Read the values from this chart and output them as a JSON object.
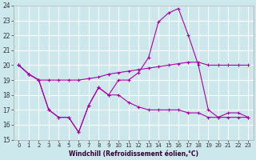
{
  "xlabel": "Windchill (Refroidissement éolien,°C)",
  "bg_color": "#cce8ec",
  "line_color": "#aa00aa",
  "grid_color": "#ffffff",
  "xlim": [
    -0.5,
    23.5
  ],
  "ylim": [
    15,
    24
  ],
  "yticks": [
    15,
    16,
    17,
    18,
    19,
    20,
    21,
    22,
    23,
    24
  ],
  "xticks": [
    0,
    1,
    2,
    3,
    4,
    5,
    6,
    7,
    8,
    9,
    10,
    11,
    12,
    13,
    14,
    15,
    16,
    17,
    18,
    19,
    20,
    21,
    22,
    23
  ],
  "series1_x": [
    0,
    1,
    2,
    3,
    4,
    5,
    6,
    7,
    8,
    9,
    10,
    11,
    12,
    13,
    14,
    15,
    16,
    17,
    18,
    19,
    20,
    21,
    22,
    23
  ],
  "series1_y": [
    20.0,
    19.4,
    19.0,
    19.0,
    19.0,
    19.0,
    19.0,
    19.1,
    19.2,
    19.4,
    19.5,
    19.6,
    19.7,
    19.8,
    19.9,
    20.0,
    20.1,
    20.2,
    20.2,
    20.0,
    20.0,
    20.0,
    20.0,
    20.0
  ],
  "series2_x": [
    0,
    1,
    2,
    3,
    4,
    5,
    6,
    7,
    8,
    9,
    10,
    11,
    12,
    13,
    14,
    15,
    16,
    17,
    18,
    19,
    20,
    21,
    22,
    23
  ],
  "series2_y": [
    20.0,
    19.4,
    19.0,
    17.0,
    16.5,
    16.5,
    15.5,
    17.3,
    18.5,
    18.0,
    19.0,
    19.0,
    19.5,
    20.5,
    22.9,
    23.5,
    23.8,
    22.0,
    20.0,
    17.0,
    16.5,
    16.5,
    16.5,
    16.5
  ],
  "series3_x": [
    0,
    1,
    2,
    3,
    4,
    5,
    6,
    7,
    8,
    9,
    10,
    11,
    12,
    13,
    14,
    15,
    16,
    17,
    18,
    19,
    20,
    21,
    22,
    23
  ],
  "series3_y": [
    20.0,
    19.4,
    19.0,
    17.0,
    16.5,
    16.5,
    15.5,
    17.3,
    18.5,
    18.0,
    18.0,
    17.5,
    17.2,
    17.0,
    17.0,
    17.0,
    17.0,
    16.8,
    16.8,
    16.5,
    16.5,
    16.8,
    16.8,
    16.5
  ]
}
